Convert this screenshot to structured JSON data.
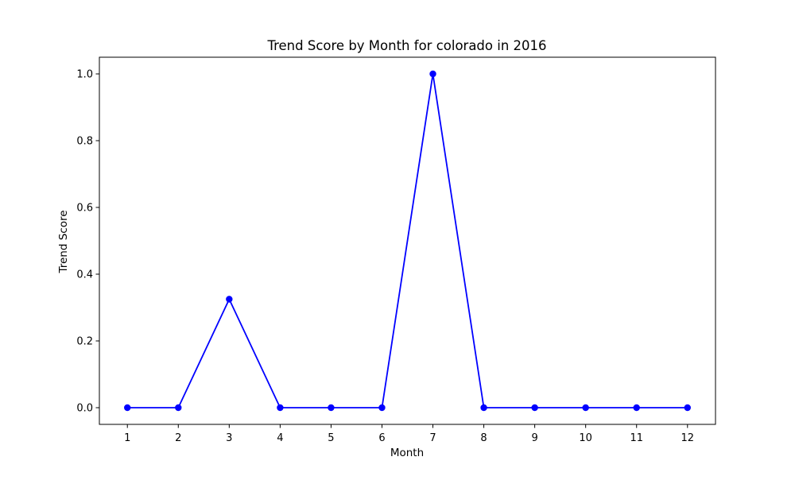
{
  "chart_data": {
    "type": "line",
    "title": "Trend Score by Month for colorado in 2016",
    "xlabel": "Month",
    "ylabel": "Trend Score",
    "x": [
      1,
      2,
      3,
      4,
      5,
      6,
      7,
      8,
      9,
      10,
      11,
      12
    ],
    "series": [
      {
        "values": [
          0,
          0,
          0.325,
          0,
          0,
          0,
          1.0,
          0,
          0,
          0,
          0,
          0
        ],
        "color": "#0000ff",
        "marker": "circle"
      }
    ],
    "xticks": [
      "1",
      "2",
      "3",
      "4",
      "5",
      "6",
      "7",
      "8",
      "9",
      "10",
      "11",
      "12"
    ],
    "yticks": [
      "0.0",
      "0.2",
      "0.4",
      "0.6",
      "0.8",
      "1.0"
    ],
    "xlim": [
      0.45,
      12.55
    ],
    "ylim": [
      -0.05,
      1.05
    ],
    "grid": false,
    "legend": "none"
  }
}
